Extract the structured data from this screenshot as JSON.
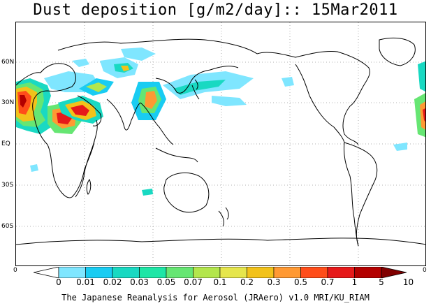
{
  "title": "Dust deposition [g/m2/day]:: 15Mar2011",
  "lat_labels": [
    "60N",
    "30N",
    "EQ",
    "30S",
    "60S"
  ],
  "axis_zero": "0",
  "colorbar": {
    "labels": [
      "0",
      "0.01",
      "0.02",
      "0.03",
      "0.05",
      "0.07",
      "0.1",
      "0.2",
      "0.3",
      "0.5",
      "0.7",
      "1",
      "5",
      "10"
    ],
    "colors": [
      "#ffffff",
      "#7fe6ff",
      "#19ccf2",
      "#19d9c2",
      "#1ee6a6",
      "#66e673",
      "#b3e64c",
      "#e6e64c",
      "#f2c21a",
      "#ff9933",
      "#ff4d1a",
      "#e6191a",
      "#b30000",
      "#800000"
    ]
  },
  "footer": "The Japanese Reanalysis for Aerosol (JRAero) v1.0 MRI/KU_RIAM"
}
